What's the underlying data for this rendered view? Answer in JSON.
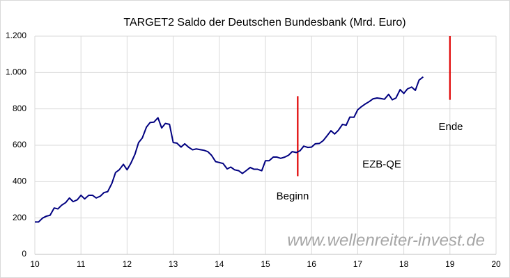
{
  "chart_data": {
    "type": "line",
    "title": "TARGET2 Saldo der Deutschen Bundesbank (Mrd. Euro)",
    "x": [
      10,
      10.08,
      10.17,
      10.25,
      10.33,
      10.42,
      10.5,
      10.58,
      10.67,
      10.75,
      10.83,
      10.92,
      11,
      11.08,
      11.17,
      11.25,
      11.33,
      11.42,
      11.5,
      11.58,
      11.67,
      11.75,
      11.83,
      11.92,
      12,
      12.08,
      12.17,
      12.25,
      12.33,
      12.42,
      12.5,
      12.58,
      12.67,
      12.75,
      12.83,
      12.92,
      13,
      13.08,
      13.17,
      13.25,
      13.33,
      13.42,
      13.5,
      13.58,
      13.67,
      13.75,
      13.83,
      13.92,
      14,
      14.08,
      14.17,
      14.25,
      14.33,
      14.42,
      14.5,
      14.58,
      14.67,
      14.75,
      14.83,
      14.92,
      15,
      15.08,
      15.17,
      15.25,
      15.33,
      15.42,
      15.5,
      15.58,
      15.67,
      15.75,
      15.83,
      15.92,
      16,
      16.08,
      16.17,
      16.25,
      16.33,
      16.42,
      16.5,
      16.58,
      16.67,
      16.75,
      16.83,
      16.92,
      17,
      17.08,
      17.17,
      17.25,
      17.33,
      17.42,
      17.5,
      17.58,
      17.67,
      17.75,
      17.83,
      17.92,
      18,
      18.08,
      18.17,
      18.25,
      18.33,
      18.42
    ],
    "series": [
      {
        "name": "TARGET2 Saldo",
        "color": "#000080",
        "values": [
          178,
          178,
          200,
          210,
          215,
          255,
          250,
          270,
          285,
          310,
          290,
          300,
          325,
          305,
          325,
          325,
          310,
          320,
          340,
          345,
          390,
          450,
          465,
          495,
          465,
          500,
          550,
          615,
          640,
          700,
          725,
          727,
          751,
          695,
          720,
          715,
          615,
          612,
          590,
          608,
          590,
          575,
          580,
          576,
          572,
          565,
          545,
          510,
          505,
          500,
          470,
          480,
          465,
          460,
          445,
          460,
          478,
          468,
          468,
          460,
          515,
          515,
          535,
          535,
          528,
          535,
          545,
          565,
          560,
          570,
          595,
          588,
          590,
          608,
          610,
          625,
          650,
          680,
          662,
          682,
          715,
          710,
          755,
          754,
          795,
          812,
          828,
          840,
          855,
          860,
          857,
          853,
          880,
          850,
          860,
          906,
          885,
          910,
          920,
          902,
          958,
          976
        ]
      }
    ],
    "markers": [
      {
        "x": 15.7,
        "y": [
          430,
          870
        ],
        "color": "#e00000"
      },
      {
        "x": 19,
        "y": [
          850,
          1200
        ],
        "color": "#e00000"
      }
    ],
    "annotations": [
      "Beginn",
      "EZB-QE",
      "Ende",
      "www.wellenreiter-invest.de"
    ],
    "xlim": [
      10,
      20
    ],
    "xticks": [
      10,
      11,
      12,
      13,
      14,
      15,
      16,
      17,
      18,
      19,
      20
    ],
    "ylim": [
      0,
      1200
    ],
    "yticks": [
      0,
      200,
      400,
      600,
      800,
      {
        "value": 1000,
        "label": "1.000"
      },
      {
        "value": 1200,
        "label": "1.200"
      }
    ],
    "grid": true
  }
}
